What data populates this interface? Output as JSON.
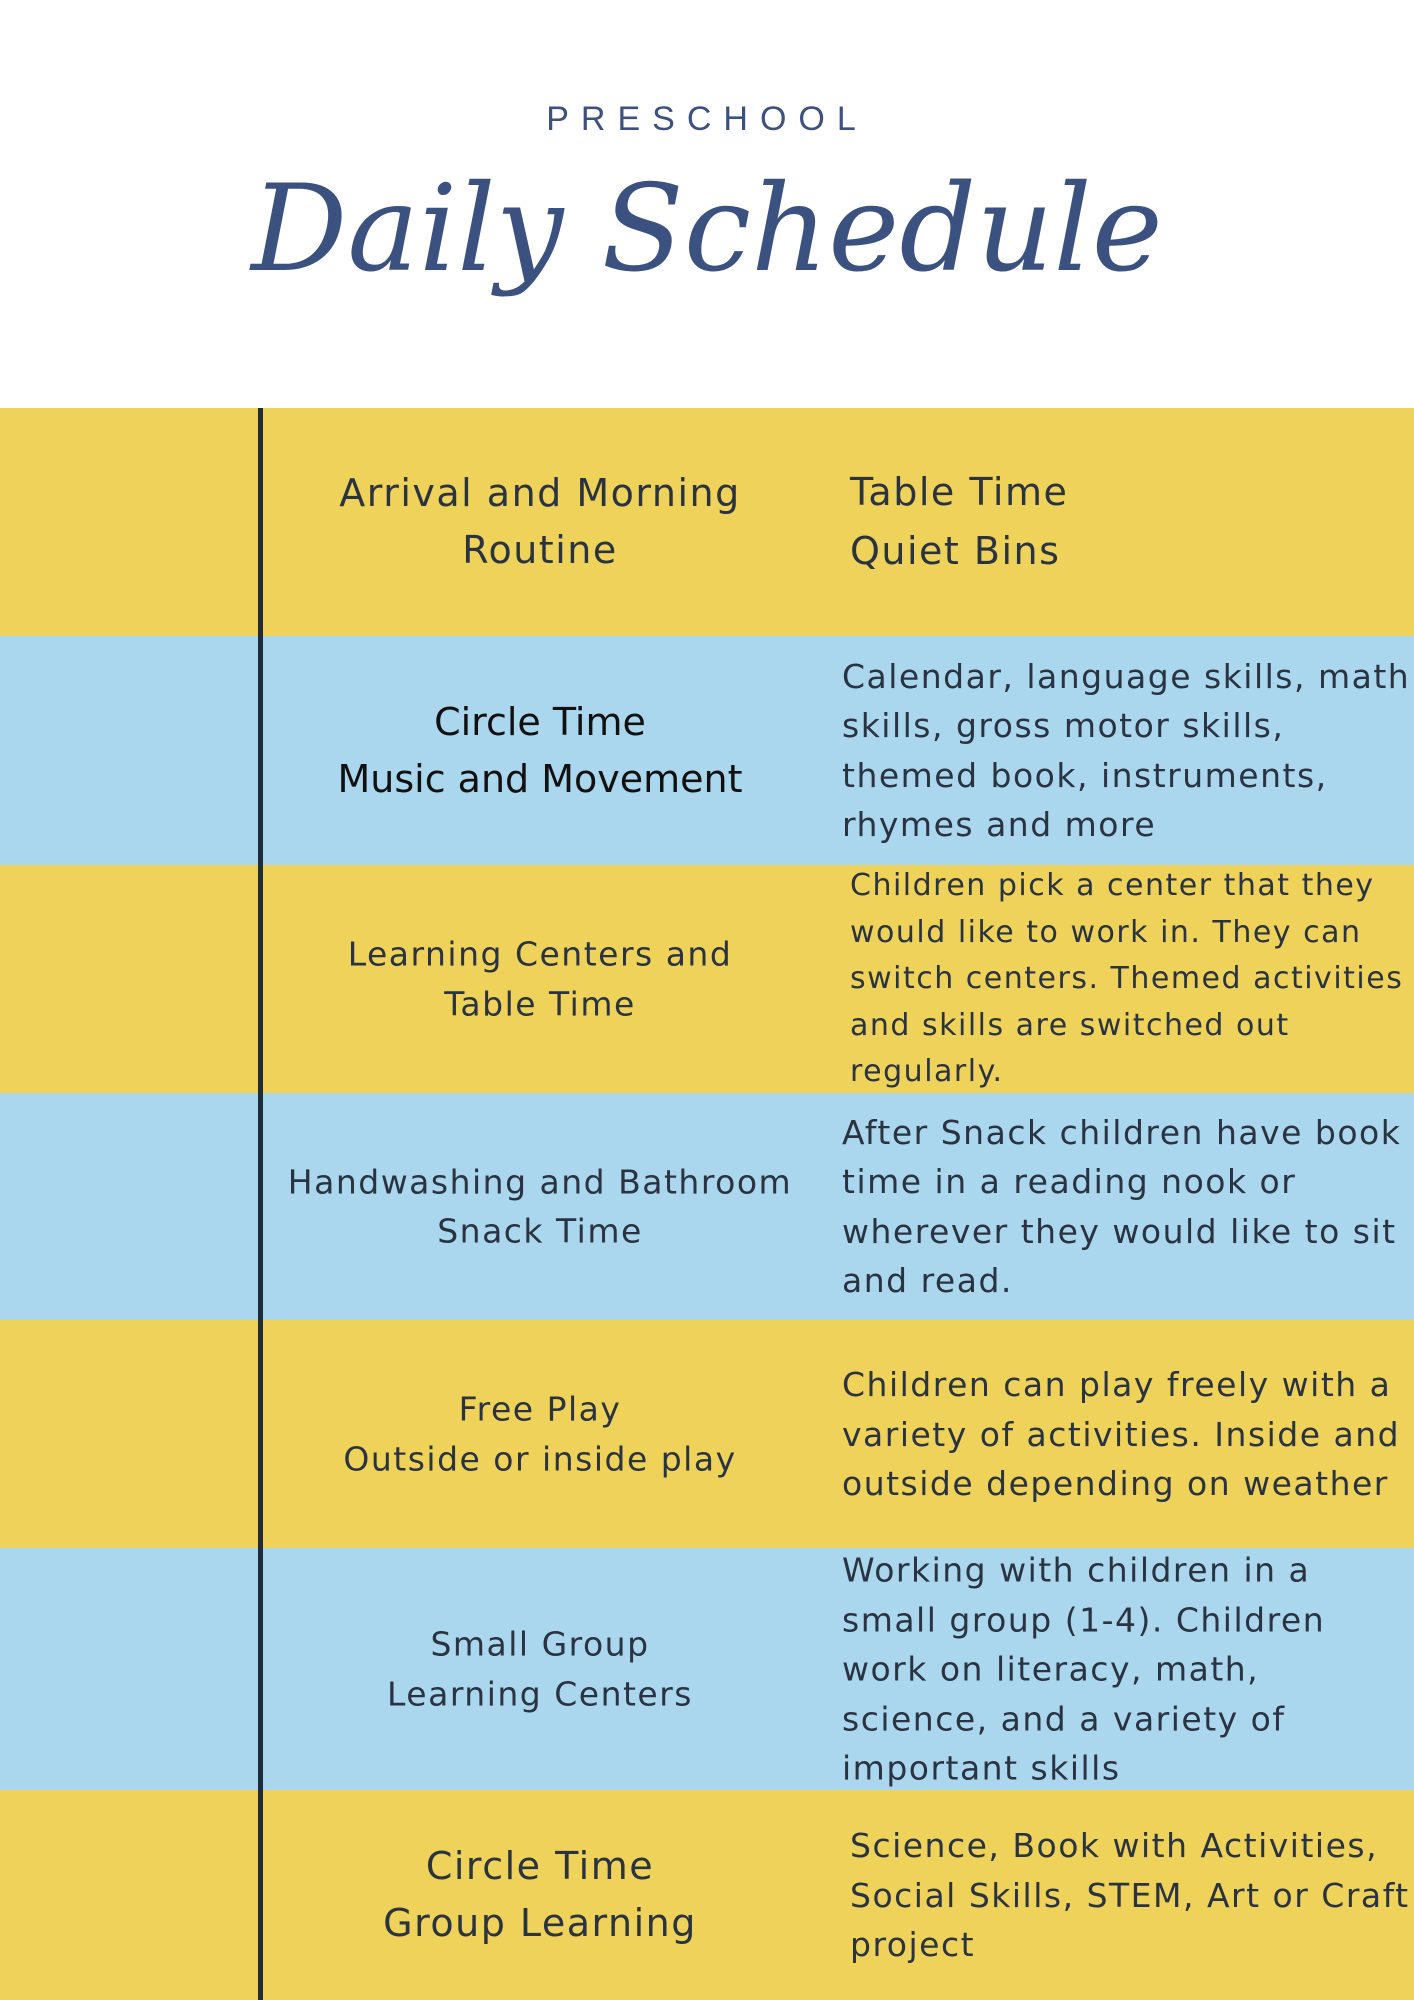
{
  "header": {
    "kicker": "PRESCHOOL",
    "title": "Daily Schedule"
  },
  "colors": {
    "yellow": "#efd25a",
    "blue": "#abd7ee",
    "title": "#3b5280",
    "divider": "#1f2d3a"
  },
  "rows": [
    {
      "activity": [
        "Arrival and Morning",
        "Routine"
      ],
      "description": [
        "Table Time",
        "Quiet Bins"
      ]
    },
    {
      "activity": [
        "Circle Time",
        "Music and Movement"
      ],
      "description": [
        "Calendar, language skills, math skills, gross motor skills, themed book, instruments, rhymes and more"
      ]
    },
    {
      "activity": [
        "Learning Centers and",
        "Table Time"
      ],
      "description": [
        "Children pick a center that they would like to work in. They can switch centers. Themed activities and skills are switched out regularly."
      ]
    },
    {
      "activity": [
        "Handwashing and Bathroom",
        "Snack Time"
      ],
      "description": [
        "After Snack children have book time in a reading nook or wherever they would like to sit and read."
      ]
    },
    {
      "activity": [
        "Free Play",
        "Outside or inside play"
      ],
      "description": [
        "Children can play freely with a variety of activities. Inside and outside depending on weather"
      ]
    },
    {
      "activity": [
        "Small Group",
        "Learning Centers"
      ],
      "description": [
        "Working with children in a small group (1-4). Children work on literacy, math, science, and a variety of important skills"
      ]
    },
    {
      "activity": [
        "Circle Time",
        "Group Learning"
      ],
      "description": [
        "Science, Book with Activities, Social Skills, STEM, Art or Craft project"
      ]
    }
  ]
}
